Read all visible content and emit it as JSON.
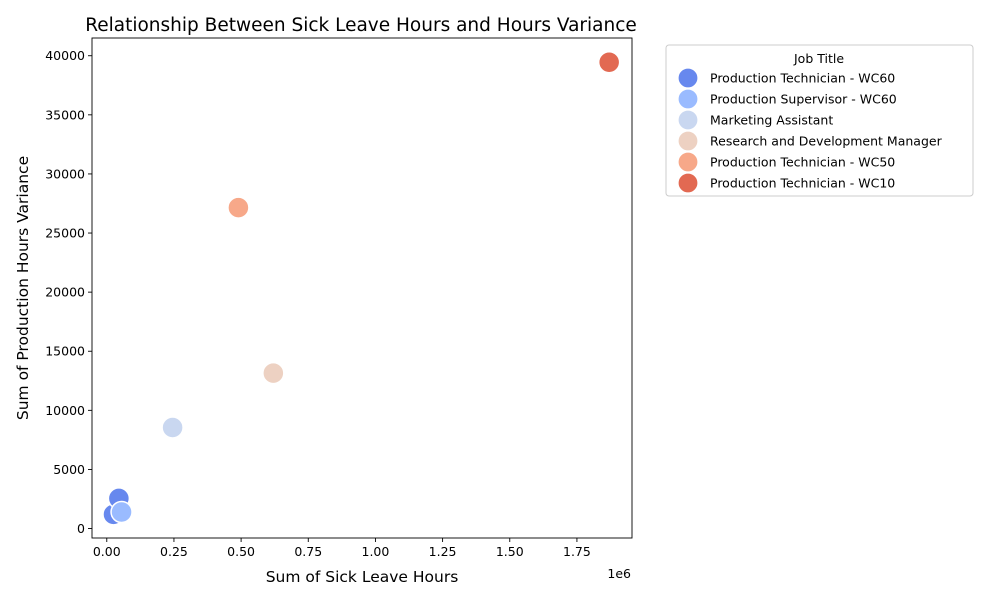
{
  "chart_data": {
    "type": "scatter",
    "title": "Relationship Between Sick Leave Hours and Hours Variance",
    "xlabel": "Sum of Sick Leave Hours",
    "ylabel": "Sum of Production Hours Variance",
    "x_offset_label": "1e6",
    "xlim": [
      -55000,
      1955000
    ],
    "ylim": [
      -800,
      41500
    ],
    "x_ticks": [
      0,
      250000,
      500000,
      750000,
      1000000,
      1250000,
      1500000,
      1750000
    ],
    "x_tick_labels": [
      "0.00",
      "0.25",
      "0.50",
      "0.75",
      "1.00",
      "1.25",
      "1.50",
      "1.75"
    ],
    "y_ticks": [
      0,
      5000,
      10000,
      15000,
      20000,
      25000,
      30000,
      35000,
      40000
    ],
    "y_tick_labels": [
      "0",
      "5000",
      "10000",
      "15000",
      "20000",
      "25000",
      "30000",
      "35000",
      "40000"
    ],
    "grid": false,
    "legend": {
      "title": "Job Title",
      "placement": "outside-right-top"
    },
    "series": [
      {
        "name": "Production Technician - WC60",
        "color": "#6788ee",
        "points": [
          [
            25000,
            1200
          ],
          [
            45000,
            2550
          ]
        ]
      },
      {
        "name": "Production Supervisor - WC60",
        "color": "#9abbff",
        "points": [
          [
            55000,
            1400
          ]
        ]
      },
      {
        "name": "Marketing Assistant",
        "color": "#c9d7f0",
        "points": [
          [
            245000,
            8550
          ]
        ]
      },
      {
        "name": "Research and Development Manager",
        "color": "#edd1c2",
        "points": [
          [
            620000,
            13150
          ]
        ]
      },
      {
        "name": "Production Technician - WC50",
        "color": "#f7a889",
        "points": [
          [
            490000,
            27150
          ]
        ]
      },
      {
        "name": "Production Technician - WC10",
        "color": "#e26952",
        "points": [
          [
            1870000,
            39450
          ]
        ]
      }
    ]
  }
}
